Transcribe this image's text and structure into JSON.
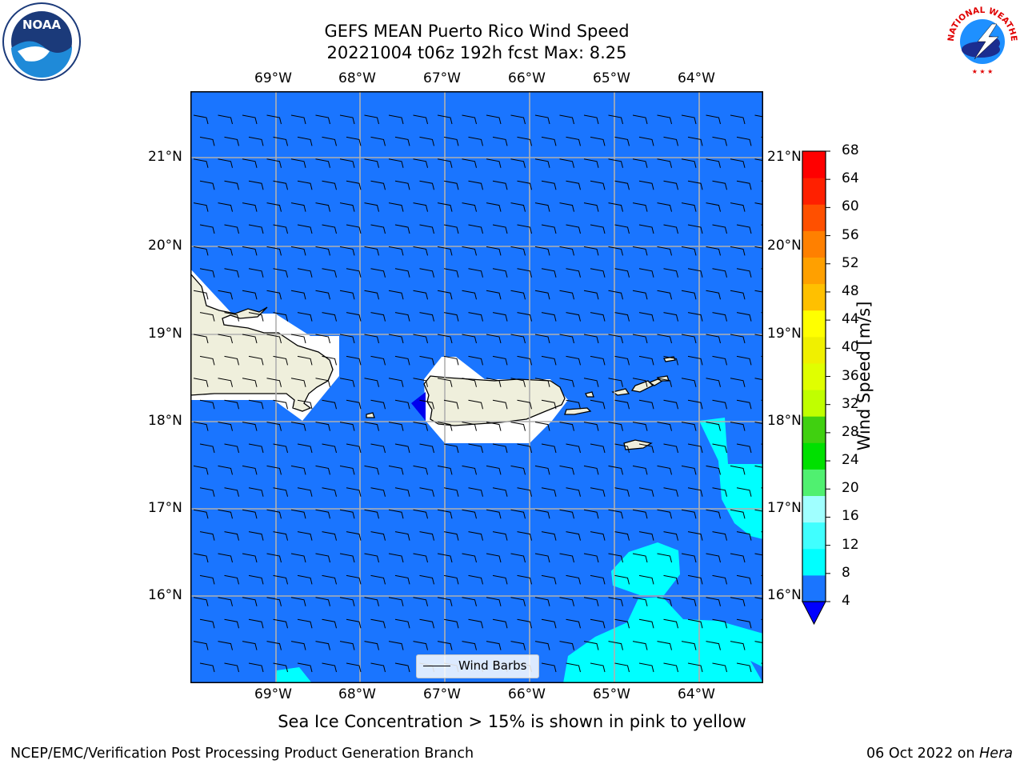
{
  "header": {
    "title_line1": "GEFS MEAN Puerto Rico Wind Speed",
    "title_line2": "20221004 t06z 192h fcst   Max: 8.25"
  },
  "logos": {
    "left": "NOAA",
    "right": "NATIONAL WEATHER SERVICE"
  },
  "map": {
    "lon_labels": [
      "69°W",
      "68°W",
      "67°W",
      "66°W",
      "65°W",
      "64°W"
    ],
    "lat_labels": [
      "21°N",
      "20°N",
      "19°N",
      "18°N",
      "17°N",
      "16°N"
    ],
    "ocean_color": "#1a75ff",
    "land_color": "#efefdc",
    "cyan_color": "#00ffff"
  },
  "legend": {
    "label": "Wind Barbs"
  },
  "colorbar": {
    "title": "Wind Speed [m/s]",
    "ticks": [
      "68",
      "64",
      "60",
      "56",
      "52",
      "48",
      "44",
      "40",
      "36",
      "32",
      "28",
      "24",
      "20",
      "16",
      "12",
      "8",
      "4"
    ],
    "colors": [
      "#1a75ff",
      "#00ffff",
      "#40ffff",
      "#a0ffff",
      "#50f070",
      "#00e000",
      "#40d010",
      "#c0ff00",
      "#e0ff00",
      "#f0f000",
      "#ffff00",
      "#ffc000",
      "#ffa000",
      "#ff8000",
      "#ff5000",
      "#ff2000",
      "#ff0000"
    ],
    "under_color": "#0000ff"
  },
  "caption": "Sea Ice Concentration > 15% is shown in pink to yellow",
  "footer": {
    "left": "NCEP/EMC/Verification Post Processing Product Generation Branch",
    "right_date": "06 Oct 2022 on ",
    "right_host": "Hera"
  }
}
